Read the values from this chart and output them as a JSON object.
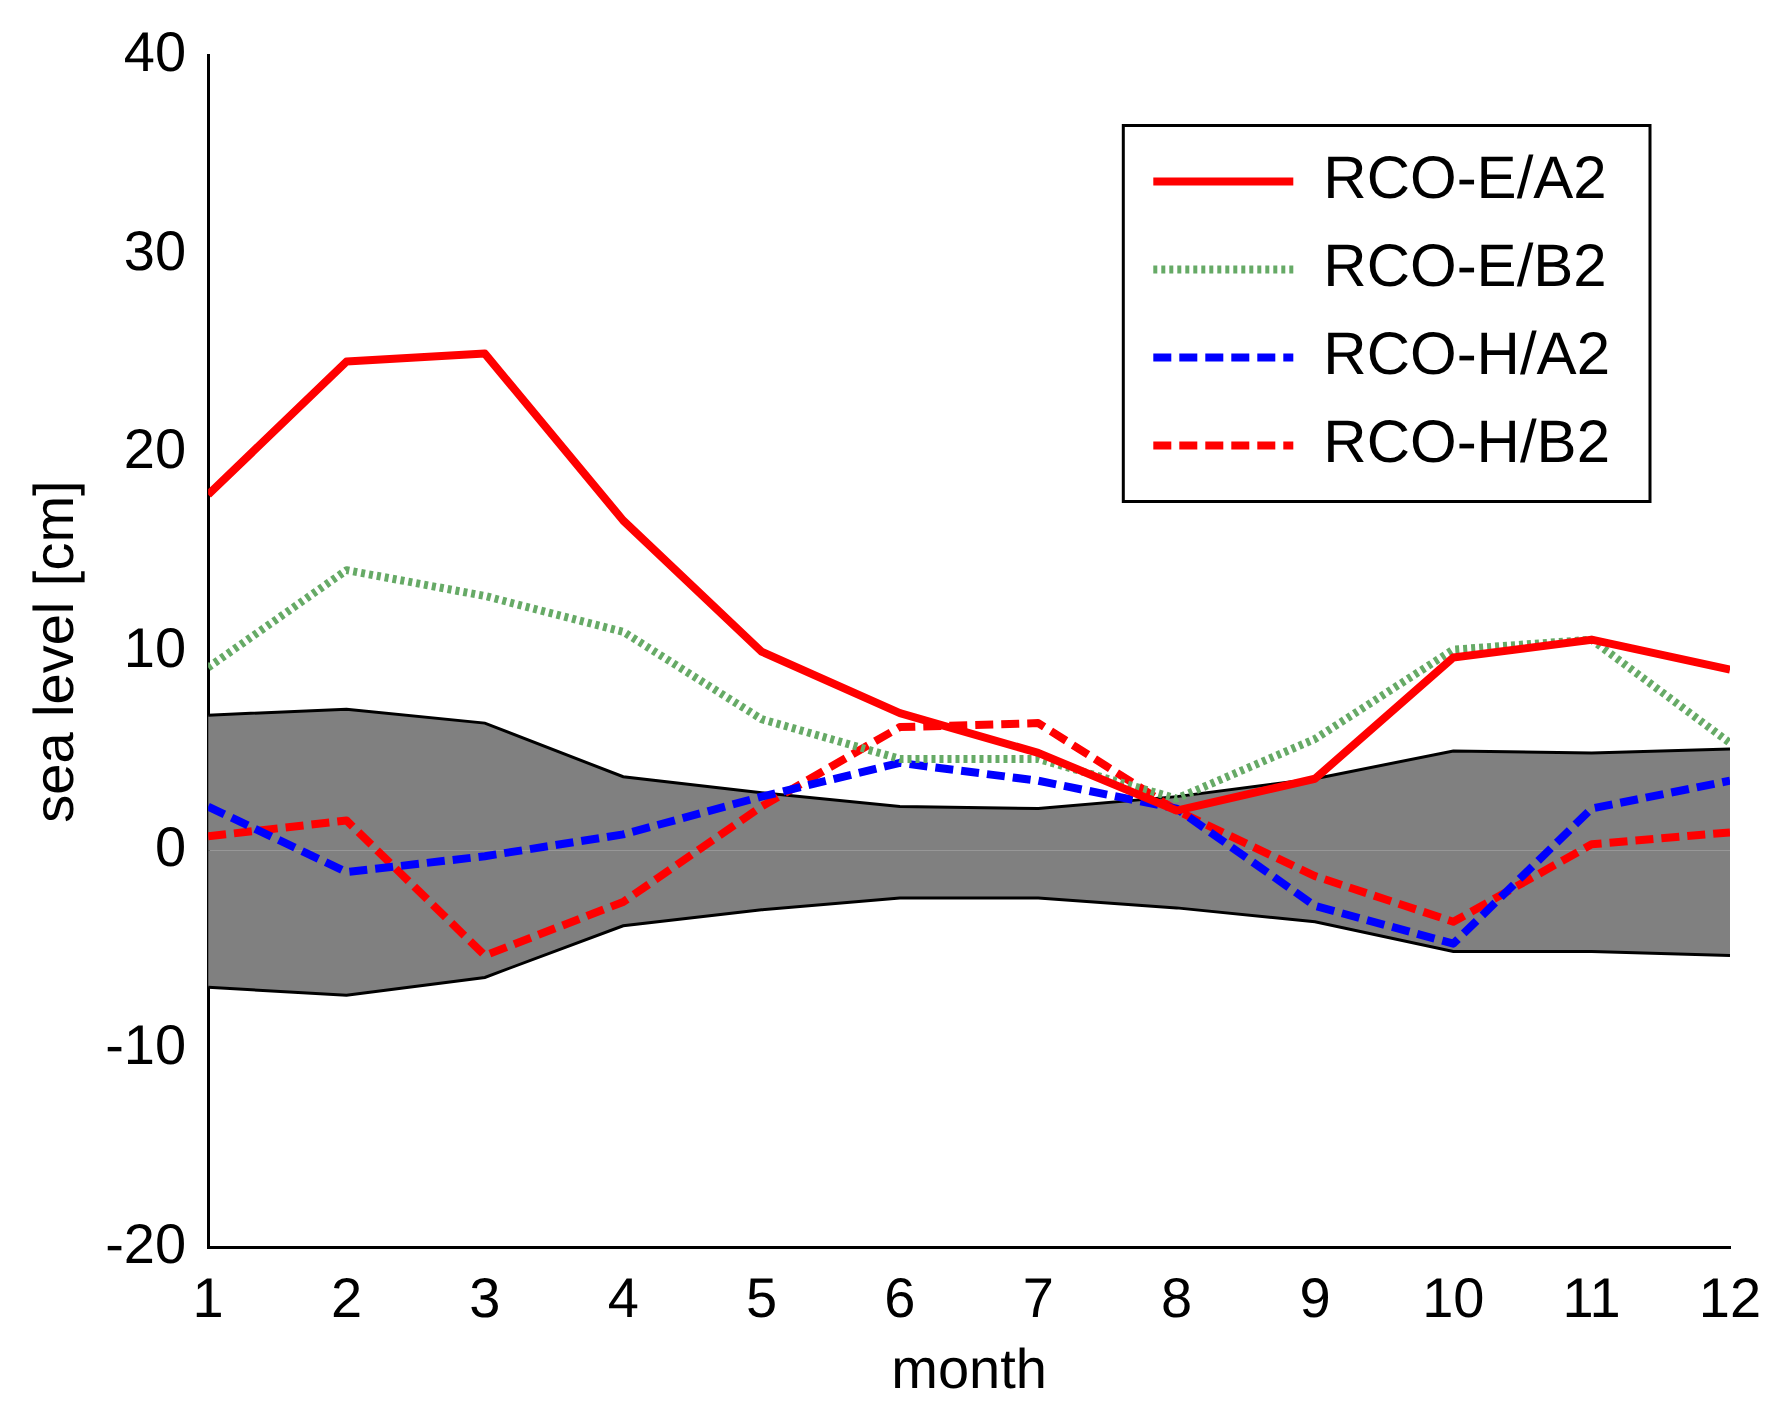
{
  "chart_data": {
    "type": "line",
    "xlabel": "month",
    "ylabel": "sea level [cm]",
    "x": [
      1,
      2,
      3,
      4,
      5,
      6,
      7,
      8,
      9,
      10,
      11,
      12
    ],
    "xlim": [
      1,
      12
    ],
    "xticks": [
      1,
      2,
      3,
      4,
      5,
      6,
      7,
      8,
      9,
      10,
      11,
      12
    ],
    "ylim": [
      -20,
      40
    ],
    "yticks": [
      -20,
      -10,
      0,
      10,
      20,
      30,
      40
    ],
    "grid": false,
    "legend": "top right",
    "marker": "none",
    "series": [
      {
        "type": "area",
        "color": "#808080",
        "values": [
          6.8,
          7.1,
          6.4,
          3.7,
          2.9,
          2.2,
          2.1,
          2.7,
          3.6,
          5.0,
          4.9,
          5.1
        ]
      },
      {
        "type": "area",
        "color": "#808080",
        "values": [
          -6.9,
          -7.3,
          -6.4,
          -3.8,
          -3.0,
          -2.4,
          -2.4,
          -2.9,
          -3.6,
          -5.1,
          -5.1,
          -5.3
        ]
      },
      {
        "name": "RCO-E/A2",
        "color": "#ff0000",
        "line_style": "solid",
        "values": [
          17.9,
          24.6,
          25.0,
          16.6,
          10.0,
          6.9,
          4.9,
          2.0,
          3.6,
          9.7,
          10.6,
          9.1
        ]
      },
      {
        "name": "RCO-E/B2",
        "color": "#66aa66",
        "line_style": "dotted",
        "values": [
          9.2,
          14.1,
          12.8,
          11.0,
          6.6,
          4.6,
          4.6,
          2.6,
          5.6,
          10.1,
          10.6,
          5.4
        ]
      },
      {
        "name": "RCO-H/A2",
        "color": "#0000ff",
        "line_style": "dashed",
        "values": [
          2.2,
          -1.1,
          -0.3,
          0.8,
          2.7,
          4.4,
          3.5,
          2.1,
          -2.8,
          -4.7,
          2.1,
          3.5
        ]
      },
      {
        "name": "RCO-H/B2",
        "color": "#ff0000",
        "line_style": "dashed",
        "values": [
          0.7,
          1.5,
          -5.3,
          -2.6,
          2.2,
          6.2,
          6.4,
          2.0,
          -1.3,
          -3.6,
          0.3,
          0.9
        ]
      }
    ]
  }
}
